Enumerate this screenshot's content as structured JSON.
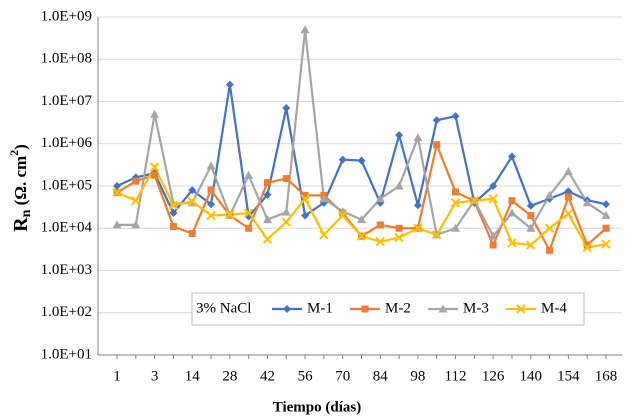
{
  "chart_data": {
    "type": "line",
    "x_label": "Tiempo (días)",
    "y_label": {
      "main": "R",
      "sub": "n",
      "text": " (Ω. cm",
      "sup": "2",
      "end": ")"
    },
    "annotation": "3% NaCl",
    "categories": [
      1,
      null,
      3,
      null,
      14,
      null,
      28,
      null,
      42,
      null,
      56,
      null,
      70,
      null,
      84,
      null,
      98,
      null,
      112,
      null,
      126,
      null,
      140,
      null,
      154,
      null,
      168
    ],
    "log_scale": true,
    "grid": true,
    "legend": "bottom",
    "ylim": [
      10,
      1000000000
    ],
    "yticks": [
      {
        "value": 10,
        "label": "1.0E+01"
      },
      {
        "value": 100,
        "label": "1.0E+02"
      },
      {
        "value": 1000,
        "label": "1.0E+03"
      },
      {
        "value": 10000,
        "label": "1.0E+04"
      },
      {
        "value": 100000,
        "label": "1.0E+05"
      },
      {
        "value": 1000000,
        "label": "1.0E+06"
      },
      {
        "value": 10000000,
        "label": "1.0E+07"
      },
      {
        "value": 100000000,
        "label": "1.0E+08"
      },
      {
        "value": 1000000000,
        "label": "1.0E+09"
      }
    ],
    "series": [
      {
        "name": "M-1",
        "color": "#4472c4",
        "marker": "diamond",
        "values": [
          100000,
          160000,
          200000,
          23000,
          80000,
          37000,
          25000000,
          19000,
          62000,
          7000000,
          20000,
          40000,
          420000,
          400000,
          40000,
          1600000,
          35000,
          3600000,
          4500000,
          40000,
          100000,
          500000,
          34000,
          50000,
          75000,
          46000,
          37000
        ]
      },
      {
        "name": "M-2",
        "color": "#ed7d31",
        "marker": "square",
        "values": [
          70000,
          130000,
          180000,
          11000,
          7500,
          80000,
          20000,
          10000,
          120000,
          150000,
          60000,
          60000,
          23000,
          6500,
          12000,
          10000,
          10000,
          950000,
          72000,
          44000,
          4000,
          45000,
          20000,
          3000,
          55000,
          4000,
          10000
        ]
      },
      {
        "name": "M-3",
        "color": "#a5a5a5",
        "marker": "triangle",
        "values": [
          12000,
          12000,
          5000000,
          38000,
          40000,
          300000,
          20000,
          180000,
          16000,
          24000,
          500000000,
          50000,
          25000,
          16000,
          50000,
          100000,
          1400000,
          7000,
          10000,
          45000,
          6500,
          23000,
          10000,
          60000,
          220000,
          40000,
          20000
        ]
      },
      {
        "name": "M-4",
        "color": "#ffc000",
        "marker": "x",
        "values": [
          70000,
          45000,
          280000,
          35000,
          43000,
          20000,
          21000,
          23000,
          5500,
          14000,
          50000,
          7000,
          20000,
          6500,
          4800,
          6000,
          10000,
          7000,
          40000,
          45000,
          50000,
          4500,
          4000,
          10000,
          22000,
          3500,
          4200
        ]
      }
    ]
  }
}
